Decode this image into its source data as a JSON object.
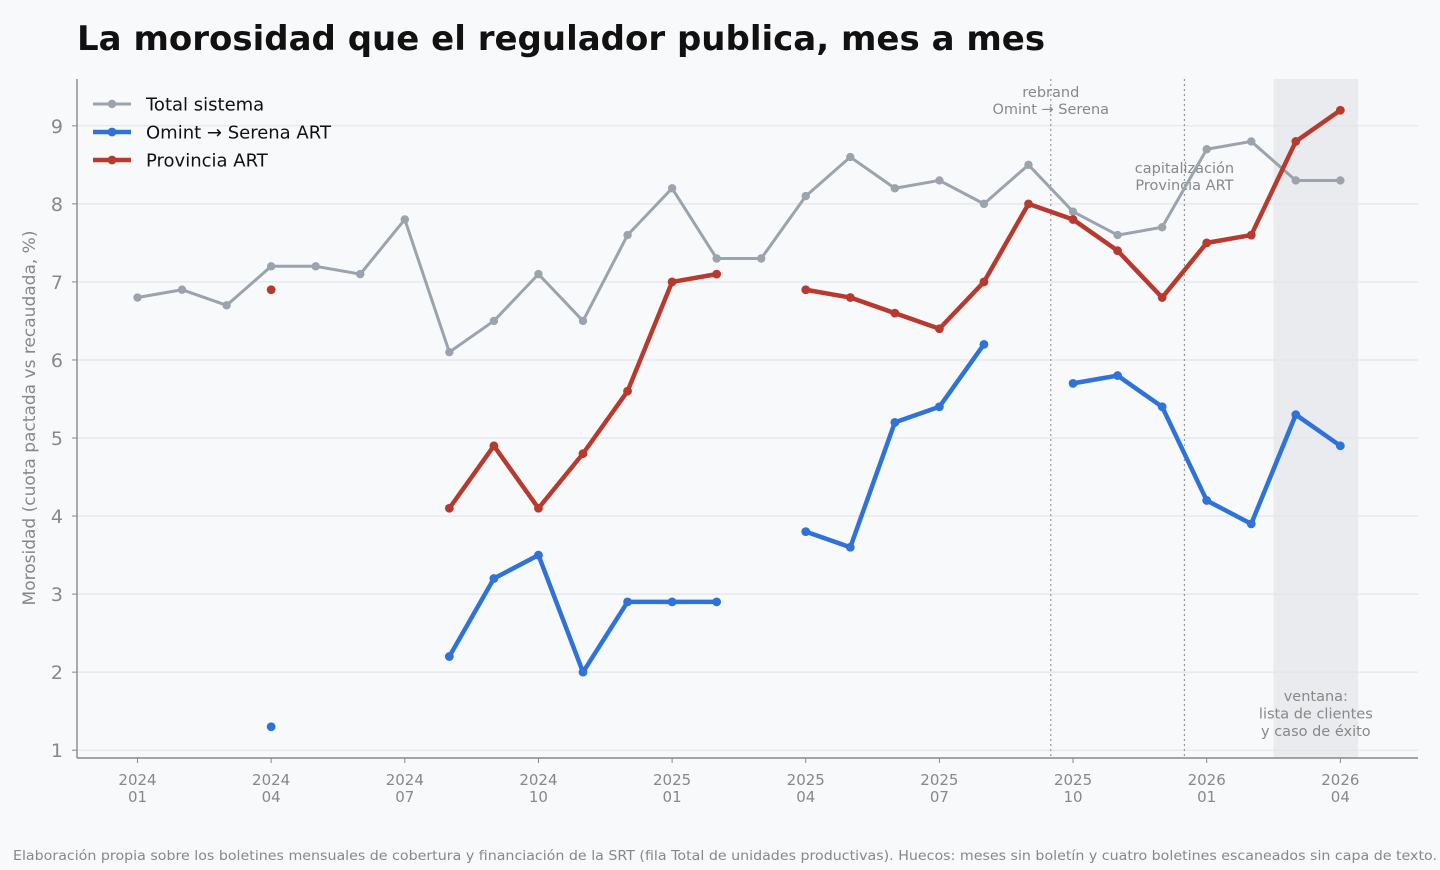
{
  "chart_data": {
    "type": "line",
    "title": "La morosidad que el regulador publica, mes a mes",
    "ylabel": "Morosidad (cuota pactada vs recaudada, %)",
    "xlabel": "",
    "ylim": [
      0.9,
      9.6
    ],
    "yticks": [
      1,
      2,
      3,
      4,
      5,
      6,
      7,
      8,
      9
    ],
    "grid": true,
    "legend_position": "top-left",
    "months": [
      "2024-01",
      "2024-02",
      "2024-03",
      "2024-04",
      "2024-05",
      "2024-06",
      "2024-07",
      "2024-08",
      "2024-09",
      "2024-10",
      "2024-11",
      "2024-12",
      "2025-01",
      "2025-02",
      "2025-03",
      "2025-04",
      "2025-05",
      "2025-06",
      "2025-07",
      "2025-08",
      "2025-09",
      "2025-10",
      "2025-11",
      "2025-12",
      "2026-01",
      "2026-02",
      "2026-03",
      "2026-04"
    ],
    "xticks": [
      {
        "month": "2024-01",
        "year": "2024",
        "mon": "01"
      },
      {
        "month": "2024-04",
        "year": "2024",
        "mon": "04"
      },
      {
        "month": "2024-07",
        "year": "2024",
        "mon": "07"
      },
      {
        "month": "2024-10",
        "year": "2024",
        "mon": "10"
      },
      {
        "month": "2025-01",
        "year": "2025",
        "mon": "01"
      },
      {
        "month": "2025-04",
        "year": "2025",
        "mon": "04"
      },
      {
        "month": "2025-07",
        "year": "2025",
        "mon": "07"
      },
      {
        "month": "2025-10",
        "year": "2025",
        "mon": "10"
      },
      {
        "month": "2026-01",
        "year": "2026",
        "mon": "01"
      },
      {
        "month": "2026-04",
        "year": "2026",
        "mon": "04"
      }
    ],
    "series": [
      {
        "name": "Total sistema",
        "color": "#9aa3ae",
        "values": [
          6.8,
          6.9,
          6.7,
          7.2,
          7.2,
          7.1,
          7.8,
          6.1,
          6.5,
          7.1,
          6.5,
          7.6,
          8.2,
          7.3,
          7.3,
          8.1,
          8.6,
          8.2,
          8.3,
          8.0,
          8.5,
          7.9,
          7.6,
          7.7,
          8.7,
          8.8,
          8.3,
          8.3
        ]
      },
      {
        "name": "Omint → Serena ART",
        "color": "#2f72d8",
        "values": [
          null,
          null,
          null,
          1.3,
          null,
          null,
          null,
          2.2,
          3.2,
          3.5,
          2.0,
          2.9,
          2.9,
          2.9,
          null,
          3.8,
          3.6,
          5.2,
          5.4,
          6.2,
          null,
          5.7,
          5.8,
          5.4,
          4.2,
          3.9,
          5.3,
          4.9
        ]
      },
      {
        "name": "Provincia ART",
        "color": "#b83a2e",
        "values": [
          null,
          null,
          null,
          6.9,
          null,
          null,
          null,
          4.1,
          4.9,
          4.1,
          4.8,
          5.6,
          7.0,
          7.1,
          null,
          6.9,
          6.8,
          6.6,
          6.4,
          7.0,
          8.0,
          7.8,
          7.4,
          6.8,
          7.5,
          7.6,
          8.8,
          9.2
        ]
      }
    ],
    "events": [
      {
        "month": "2025-09",
        "label_lines": [
          "rebrand",
          "Omint → Serena"
        ]
      },
      {
        "month": "2025-12",
        "label_lines": [
          "capitalización",
          "Provincia ART"
        ]
      }
    ],
    "window": {
      "from": "2026-03",
      "to": "2026-04",
      "label_lines": [
        "ventana:",
        "lista de clientes",
        "y caso de éxito"
      ]
    },
    "footnote": "Elaboración propia sobre los boletines mensuales de cobertura y financiación de la SRT (fila Total de unidades productivas). Huecos: meses sin boletín y cuatro boletines escaneados sin capa de texto."
  }
}
